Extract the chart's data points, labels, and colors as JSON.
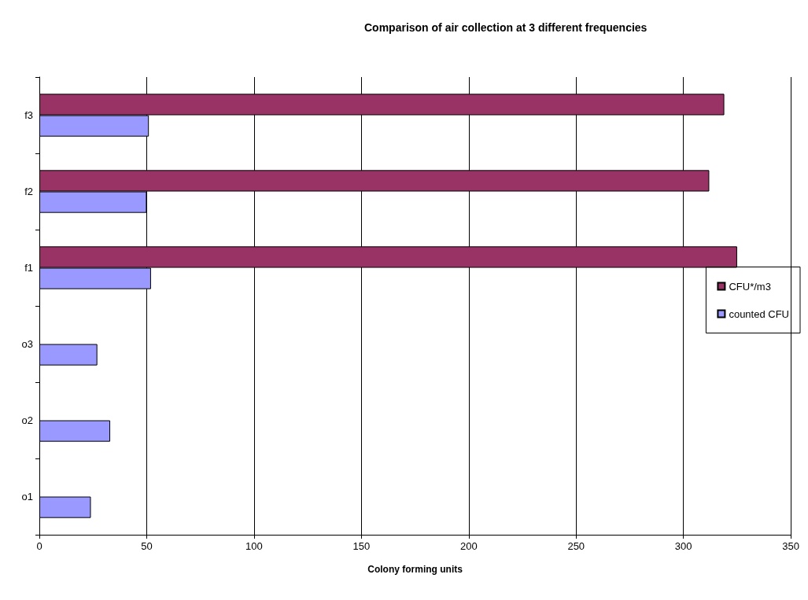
{
  "chart_data": {
    "type": "bar",
    "orientation": "horizontal",
    "title": "Comparison of air collection at 3 different frequencies",
    "xlabel": "Colony forming units",
    "categories": [
      "f3",
      "f2",
      "f1",
      "o3",
      "o2",
      "o1"
    ],
    "series": [
      {
        "name": "CFU*/m3",
        "color": "#993366",
        "values": [
          319,
          312,
          325,
          null,
          null,
          null
        ]
      },
      {
        "name": "counted CFU",
        "color": "#9999ff",
        "values": [
          51,
          50,
          52,
          27,
          33,
          24
        ]
      }
    ],
    "xlim": [
      0,
      350
    ],
    "xticks": [
      0,
      50,
      100,
      150,
      200,
      250,
      300,
      350
    ],
    "grid": "x",
    "legend": "right"
  }
}
